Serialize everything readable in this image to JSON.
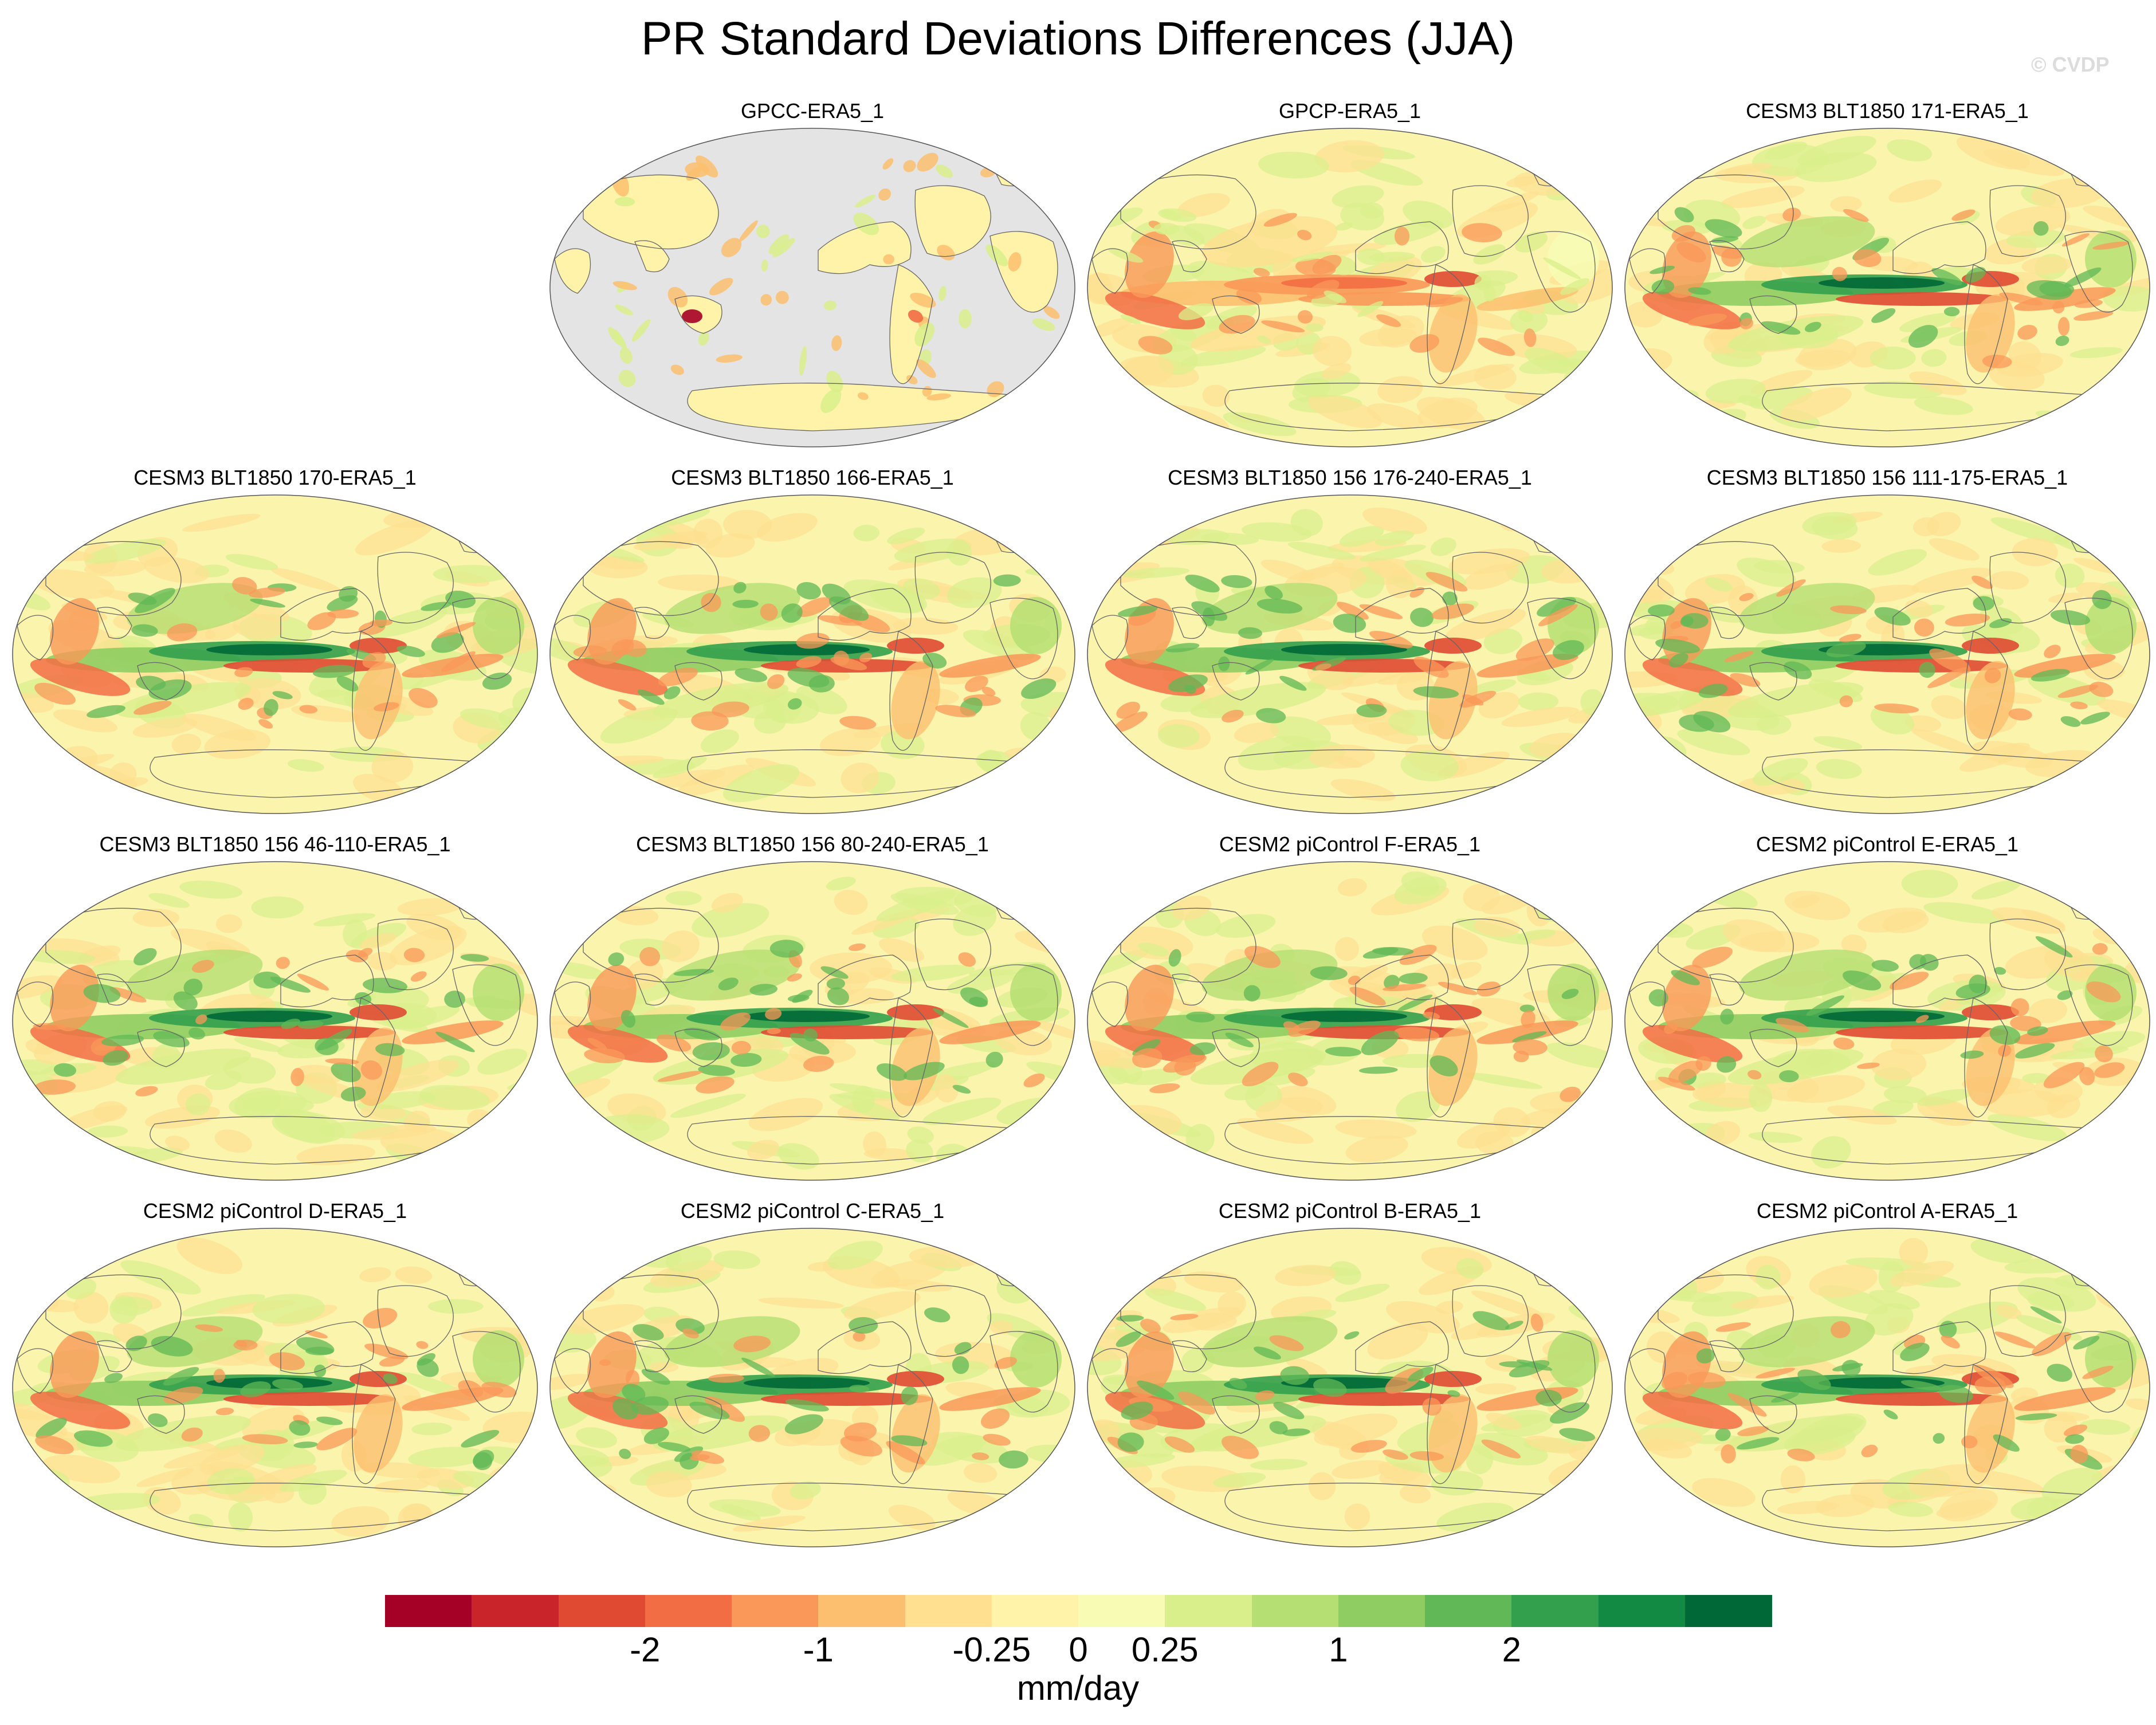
{
  "header": {
    "title": "PR Standard Deviations Differences (JJA)",
    "watermark": "© CVDP"
  },
  "panels": [
    {
      "title": "GPCC-ERA5_1",
      "kind": "land"
    },
    {
      "title": "GPCP-ERA5_1",
      "kind": "obs"
    },
    {
      "title": "CESM3 BLT1850 171-ERA5_1",
      "kind": "model"
    },
    {
      "title": "CESM3 BLT1850 170-ERA5_1",
      "kind": "model"
    },
    {
      "title": "CESM3 BLT1850 166-ERA5_1",
      "kind": "model"
    },
    {
      "title": "CESM3 BLT1850 156 176-240-ERA5_1",
      "kind": "model"
    },
    {
      "title": "CESM3 BLT1850 156 111-175-ERA5_1",
      "kind": "model"
    },
    {
      "title": "CESM3 BLT1850 156 46-110-ERA5_1",
      "kind": "model"
    },
    {
      "title": "CESM3 BLT1850 156 80-240-ERA5_1",
      "kind": "model"
    },
    {
      "title": "CESM2 piControl F-ERA5_1",
      "kind": "model"
    },
    {
      "title": "CESM2 piControl E-ERA5_1",
      "kind": "model"
    },
    {
      "title": "CESM2 piControl D-ERA5_1",
      "kind": "model"
    },
    {
      "title": "CESM2 piControl C-ERA5_1",
      "kind": "model"
    },
    {
      "title": "CESM2 piControl B-ERA5_1",
      "kind": "model"
    },
    {
      "title": "CESM2 piControl A-ERA5_1",
      "kind": "model"
    }
  ],
  "colorbar": {
    "colors": [
      "#a50026",
      "#c8242a",
      "#e04a33",
      "#f26d44",
      "#f99858",
      "#fcbf6f",
      "#fee090",
      "#fff3a9",
      "#f7fbb4",
      "#d9ef8b",
      "#b5df72",
      "#8fcd62",
      "#60b856",
      "#33a04d",
      "#128a44",
      "#006837"
    ],
    "tick_labels": [
      "-2",
      "-1",
      "-0.25",
      "0",
      "0.25",
      "1",
      "2"
    ],
    "units": "mm/day"
  },
  "map_colors": {
    "background": "#fbf4ad",
    "missing": "#e4e4e4",
    "ocean_outline": "#555555",
    "coast": "#666666"
  }
}
